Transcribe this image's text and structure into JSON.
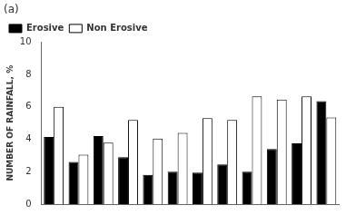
{
  "chart_data": {
    "type": "bar",
    "title": "(a)",
    "ylabel": "NUMBER OF RAINFALL, %",
    "categories": [
      null,
      null,
      null,
      null,
      null,
      null,
      null,
      null,
      null,
      null,
      null,
      null
    ],
    "series": [
      {
        "name": "Erosive",
        "color": "#000000",
        "values": [
          4.15,
          2.6,
          4.2,
          2.9,
          1.8,
          2.0,
          1.95,
          2.45,
          2.0,
          3.4,
          3.75,
          6.35
        ]
      },
      {
        "name": "Non Erosive",
        "color": "#ffffff",
        "values": [
          6.0,
          3.05,
          3.8,
          5.2,
          4.05,
          4.4,
          5.3,
          5.2,
          6.65,
          6.45,
          6.65,
          5.35
        ]
      }
    ],
    "ylim": [
      0,
      10
    ],
    "yticks": [
      0,
      2,
      4,
      6,
      8,
      10
    ],
    "grid": false,
    "legend": "upper left",
    "tick_labels": "y"
  }
}
